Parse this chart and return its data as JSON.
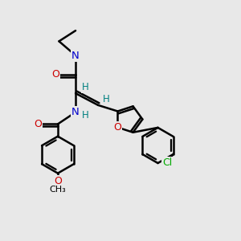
{
  "bg_color": "#e8e8e8",
  "atom_colors": {
    "C": "#000000",
    "N": "#0000cc",
    "O": "#cc0000",
    "H": "#008080",
    "Cl": "#00aa00"
  },
  "bond_color": "#000000",
  "bond_width": 1.8,
  "figsize": [
    3.0,
    3.0
  ],
  "dpi": 100,
  "xlim": [
    0,
    10
  ],
  "ylim": [
    0,
    10
  ]
}
